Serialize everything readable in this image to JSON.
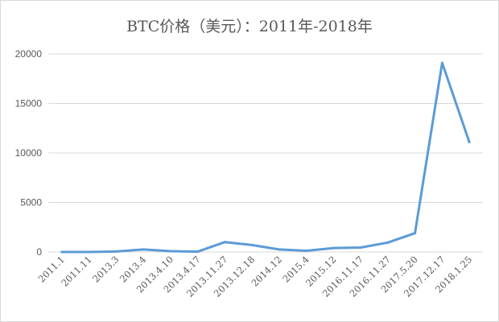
{
  "chart_data": {
    "type": "line",
    "title": "BTC价格（美元）：2011年-2018年",
    "xlabel": "",
    "ylabel": "",
    "categories": [
      "2011.1",
      "2011.11",
      "2013.3",
      "2013.4",
      "2013.4.10",
      "2013.4.17",
      "2013.11.27",
      "2013.12.18",
      "2014.12",
      "2015.4",
      "2015.12",
      "2016.11.17",
      "2016.11.27",
      "2017.5.20",
      "2017.12.17",
      "2018.1.25"
    ],
    "series": [
      {
        "values": [
          0.3,
          3,
          50,
          250,
          85,
          35,
          1000,
          700,
          250,
          120,
          400,
          450,
          950,
          1900,
          19100,
          11100
        ],
        "color": "#5b9bd5"
      }
    ],
    "ylim": [
      0,
      20000
    ],
    "yticks": [
      "0",
      "5000",
      "10000",
      "15000",
      "20000"
    ],
    "grid": "horizontal",
    "legend": "none"
  }
}
